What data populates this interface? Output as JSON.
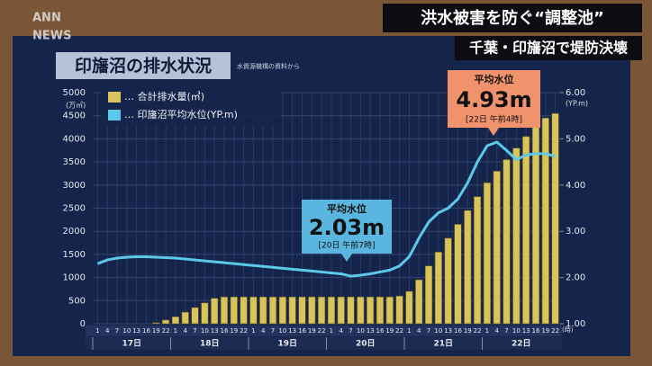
{
  "logo": [
    "ANN",
    "NEWS"
  ],
  "banner": {
    "headline": "洪水被害を防ぐ“調整池”",
    "subhead": "千葉・印旛沼で堤防決壊"
  },
  "chart_data": {
    "type": "combo",
    "title": "印旛沼の排水状況",
    "source": "水資源機構の資料から",
    "y_unit": "(万㎥)",
    "y2_unit": "(YP.m)",
    "x_unit": "(時)",
    "categories": [
      "1",
      "4",
      "7",
      "10",
      "13",
      "16",
      "19",
      "22",
      "1",
      "4",
      "7",
      "10",
      "13",
      "16",
      "19",
      "22",
      "1",
      "4",
      "7",
      "10",
      "13",
      "16",
      "19",
      "22",
      "1",
      "4",
      "7",
      "10",
      "13",
      "16",
      "19",
      "22",
      "1",
      "4",
      "7",
      "10",
      "13",
      "16",
      "19",
      "22",
      "1",
      "4",
      "7",
      "10",
      "13",
      "16",
      "19",
      "22"
    ],
    "days": [
      "17日",
      "18日",
      "19日",
      "20日",
      "21日",
      "22日"
    ],
    "series": [
      {
        "name": "… 合計排水量(㎥)",
        "type": "bar",
        "color": "#d9c45c",
        "values": [
          0,
          0,
          0,
          0,
          0,
          0,
          20,
          80,
          150,
          250,
          350,
          450,
          550,
          580,
          580,
          580,
          580,
          580,
          580,
          580,
          580,
          580,
          580,
          580,
          580,
          580,
          580,
          580,
          580,
          580,
          580,
          600,
          700,
          950,
          1250,
          1550,
          1850,
          2150,
          2450,
          2750,
          3050,
          3300,
          3550,
          3800,
          4050,
          4300,
          4450,
          4550
        ]
      },
      {
        "name": "… 印旛沼平均水位(YP.m)",
        "type": "line",
        "axis": "y2",
        "color": "#5cc8ea",
        "values": [
          2.3,
          2.38,
          2.42,
          2.44,
          2.45,
          2.45,
          2.44,
          2.43,
          2.42,
          2.4,
          2.38,
          2.36,
          2.34,
          2.32,
          2.3,
          2.28,
          2.26,
          2.24,
          2.22,
          2.2,
          2.18,
          2.16,
          2.14,
          2.12,
          2.1,
          2.08,
          2.03,
          2.05,
          2.08,
          2.12,
          2.16,
          2.25,
          2.45,
          2.85,
          3.2,
          3.4,
          3.5,
          3.7,
          4.05,
          4.5,
          4.85,
          4.93,
          4.75,
          4.55,
          4.65,
          4.68,
          4.68,
          4.62
        ]
      }
    ],
    "ylim": [
      0,
      5000
    ],
    "yticks": [
      0,
      500,
      1000,
      1500,
      2000,
      2500,
      3000,
      3500,
      4000,
      4500,
      5000
    ],
    "y2lim": [
      1,
      6
    ],
    "y2ticks": [
      {
        "value": 1,
        "label": "1.00"
      },
      {
        "value": 2,
        "label": "2.00"
      },
      {
        "value": 3,
        "label": "3.00"
      },
      {
        "value": 4,
        "label": "4.00"
      },
      {
        "value": 5,
        "label": "5.00"
      },
      {
        "value": 6,
        "label": "6.00"
      }
    ],
    "grid": true,
    "annotations": [
      {
        "label": "平均水位",
        "value": "2.03m",
        "time": "[20日 午前7時]",
        "color": "#5bb6df"
      },
      {
        "label": "平均水位",
        "value": "4.93m",
        "time": "[22日 午前4時]",
        "color": "#f0936c"
      }
    ]
  }
}
